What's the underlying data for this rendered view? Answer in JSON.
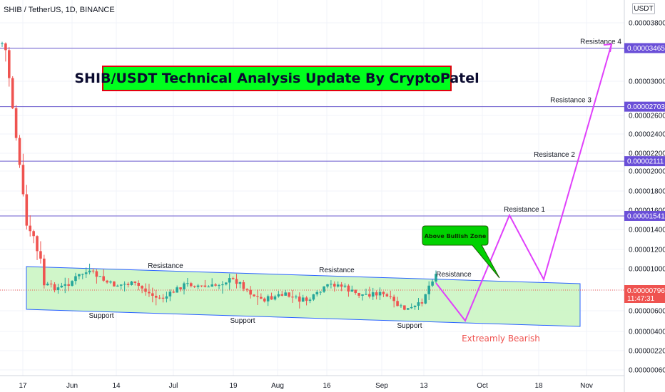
{
  "header": {
    "symbol": "SHIB / TetherUS, 1D, BINANCE"
  },
  "currency_button": "USDT",
  "title_box": "SHIB/USDT Technical Analysis Update By CryptoPatel",
  "chart_data": {
    "type": "candlestick",
    "symbol": "SHIB / TetherUS",
    "interval": "1D",
    "exchange": "BINANCE",
    "y_scale": "log",
    "x_ticks": [
      "17",
      "Jun",
      "14",
      "Jul",
      "19",
      "Aug",
      "16",
      "Sep",
      "13",
      "Oct",
      "18",
      "Nov"
    ],
    "y_ticks": [
      "0.00003800",
      "0.00003460",
      "0.00003000",
      "0.00002600",
      "0.00002400",
      "0.00002200",
      "0.00002000",
      "0.00001800",
      "0.00001600",
      "0.00001400",
      "0.00001200",
      "0.00001000",
      "0.00000800",
      "0.00000600",
      "0.00000400",
      "0.00000220",
      "0.00000060"
    ],
    "horizontal_levels": [
      {
        "name": "Resistance 4",
        "value": "0.00003465"
      },
      {
        "name": "Resistance 3",
        "value": "0.00002703"
      },
      {
        "name": "Resistance 2",
        "value": "0.00002111"
      },
      {
        "name": "Resistance 1",
        "value": "0.00001541"
      }
    ],
    "current_price": {
      "value": "0.00000796",
      "countdown": "11:47:31"
    },
    "annotations": {
      "channel_resistance": [
        "Resistance",
        "Resistance",
        "Resistance"
      ],
      "channel_support": [
        "Support",
        "Support",
        "Support"
      ],
      "bullish_callout": "Above Bullish Zone",
      "bearish_note": "Extreamly Bearish"
    },
    "colors": {
      "up": "#26a69a",
      "down": "#ef5350",
      "level": "#6a5acd",
      "projection": "#e040fb",
      "channel_fill": "#c8f5c0",
      "channel_border": "#2962ff"
    }
  }
}
